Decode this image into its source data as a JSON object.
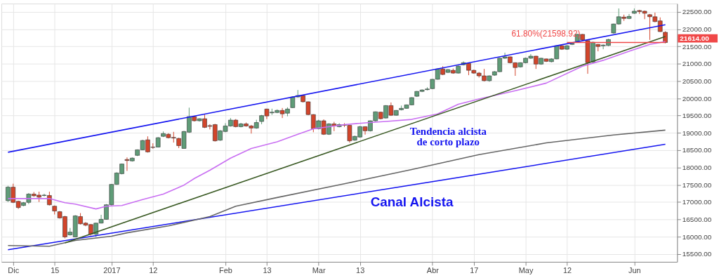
{
  "chart_data": {
    "type": "candlestick",
    "categories": [
      null,
      "Dic",
      null,
      null,
      null,
      null,
      null,
      null,
      null,
      "15",
      null,
      null,
      null,
      null,
      null,
      null,
      null,
      null,
      null,
      null,
      "2017",
      null,
      null,
      null,
      null,
      null,
      null,
      null,
      "12",
      null,
      null,
      null,
      null,
      null,
      null,
      null,
      null,
      null,
      null,
      null,
      null,
      null,
      "Feb",
      null,
      null,
      null,
      null,
      null,
      null,
      null,
      "13",
      null,
      null,
      null,
      null,
      null,
      null,
      null,
      null,
      null,
      "Mar",
      null,
      null,
      null,
      null,
      null,
      null,
      null,
      "13",
      null,
      null,
      null,
      null,
      null,
      null,
      null,
      null,
      null,
      null,
      null,
      null,
      null,
      "Abr",
      null,
      null,
      null,
      null,
      null,
      null,
      null,
      "17",
      null,
      null,
      null,
      null,
      null,
      null,
      null,
      null,
      null,
      "May",
      null,
      null,
      null,
      null,
      null,
      null,
      null,
      "12",
      null,
      null,
      null,
      null,
      null,
      null,
      null,
      null,
      null,
      null,
      null,
      null,
      "Jun",
      null,
      null,
      null,
      null,
      null,
      null
    ],
    "ohlc": [
      [
        17040,
        17470,
        17000,
        17430
      ],
      [
        17430,
        17530,
        16970,
        16990
      ],
      [
        17020,
        17040,
        16800,
        16840
      ],
      [
        16900,
        17000,
        16880,
        16980
      ],
      [
        16990,
        17260,
        16940,
        17230
      ],
      [
        17230,
        17290,
        17150,
        17180
      ],
      [
        17200,
        17300,
        17000,
        17140
      ],
      [
        17190,
        17240,
        17160,
        17200
      ],
      [
        17190,
        17300,
        16900,
        16920
      ],
      [
        16880,
        16900,
        16640,
        16740
      ],
      [
        16720,
        16740,
        16520,
        16540
      ],
      [
        16580,
        16600,
        15950,
        15990
      ],
      [
        16050,
        16250,
        16030,
        16130
      ],
      [
        15990,
        16620,
        15990,
        16600
      ],
      [
        16580,
        16680,
        16350,
        16370
      ],
      [
        16390,
        16420,
        16300,
        16330
      ],
      [
        16350,
        16360,
        16030,
        16070
      ],
      [
        16070,
        16400,
        15990,
        16390
      ],
      [
        16390,
        16630,
        16380,
        16500
      ],
      [
        16500,
        16940,
        16490,
        16920
      ],
      [
        16920,
        17520,
        16900,
        17510
      ],
      [
        17510,
        17860,
        17500,
        17840
      ],
      [
        17820,
        18110,
        17800,
        18100
      ],
      [
        18230,
        18290,
        17900,
        18200
      ],
      [
        18190,
        18290,
        18170,
        18270
      ],
      [
        18350,
        18520,
        18330,
        18510
      ],
      [
        18510,
        18800,
        18500,
        18780
      ],
      [
        18800,
        18900,
        18430,
        18450
      ],
      [
        18590,
        18700,
        18540,
        18580
      ],
      [
        18590,
        18880,
        18580,
        18860
      ],
      [
        18900,
        19040,
        18880,
        18980
      ],
      [
        18960,
        18990,
        18840,
        18860
      ],
      [
        18870,
        19030,
        18720,
        18850
      ],
      [
        18840,
        18860,
        18560,
        18630
      ],
      [
        18550,
        19060,
        18540,
        19040
      ],
      [
        19020,
        19730,
        19000,
        19470
      ],
      [
        19470,
        19490,
        19330,
        19350
      ],
      [
        19350,
        19420,
        19330,
        19410
      ],
      [
        19410,
        19530,
        19140,
        19160
      ],
      [
        19210,
        19250,
        19100,
        19190
      ],
      [
        19240,
        19260,
        18750,
        18770
      ],
      [
        18790,
        19080,
        18770,
        19060
      ],
      [
        19040,
        19280,
        19020,
        19200
      ],
      [
        19200,
        19430,
        19180,
        19370
      ],
      [
        19370,
        19400,
        19160,
        19180
      ],
      [
        19180,
        19290,
        19160,
        19260
      ],
      [
        19260,
        19300,
        19180,
        19200
      ],
      [
        19200,
        19230,
        18980,
        19140
      ],
      [
        19140,
        19380,
        19120,
        19300
      ],
      [
        19330,
        19520,
        19250,
        19500
      ],
      [
        19690,
        19700,
        19400,
        19490
      ],
      [
        19580,
        19700,
        19520,
        19600
      ],
      [
        19590,
        19680,
        19570,
        19650
      ],
      [
        19650,
        19720,
        19430,
        19550
      ],
      [
        19570,
        19740,
        19480,
        19690
      ],
      [
        19730,
        20060,
        19720,
        20040
      ],
      [
        20040,
        20240,
        20020,
        20080
      ],
      [
        20080,
        20090,
        19880,
        19900
      ],
      [
        19900,
        19910,
        19510,
        19530
      ],
      [
        19530,
        19540,
        19020,
        19120
      ],
      [
        19120,
        19380,
        19100,
        19350
      ],
      [
        19350,
        19390,
        18940,
        18960
      ],
      [
        18960,
        19280,
        18940,
        19260
      ],
      [
        19260,
        19320,
        19050,
        19200
      ],
      [
        19180,
        19280,
        19160,
        19240
      ],
      [
        19240,
        19280,
        19170,
        19220
      ],
      [
        19220,
        19230,
        18720,
        18770
      ],
      [
        18790,
        18920,
        18770,
        18900
      ],
      [
        18880,
        19200,
        18860,
        19180
      ],
      [
        19180,
        19190,
        18950,
        19060
      ],
      [
        19060,
        19360,
        19040,
        19350
      ],
      [
        19350,
        19620,
        19330,
        19610
      ],
      [
        19600,
        19610,
        19390,
        19410
      ],
      [
        19430,
        19800,
        19420,
        19790
      ],
      [
        19790,
        19880,
        19490,
        19510
      ],
      [
        19510,
        19660,
        19500,
        19650
      ],
      [
        19670,
        19790,
        19650,
        19710
      ],
      [
        19710,
        19820,
        19700,
        19810
      ],
      [
        19810,
        20030,
        19800,
        20020
      ],
      [
        20060,
        20210,
        20040,
        20200
      ],
      [
        20200,
        20260,
        20180,
        20240
      ],
      [
        20250,
        20320,
        20230,
        20270
      ],
      [
        20280,
        20560,
        20270,
        20550
      ],
      [
        20550,
        20860,
        20540,
        20850
      ],
      [
        20850,
        20930,
        20670,
        20690
      ],
      [
        20750,
        20850,
        20730,
        20830
      ],
      [
        20810,
        20860,
        20710,
        20730
      ],
      [
        20730,
        20950,
        20720,
        20930
      ],
      [
        20970,
        21070,
        20950,
        21030
      ],
      [
        21010,
        21020,
        20670,
        20810
      ],
      [
        20810,
        20830,
        20710,
        20730
      ],
      [
        20730,
        20760,
        20600,
        20650
      ],
      [
        20650,
        20850,
        20490,
        20510
      ],
      [
        20510,
        20660,
        20480,
        20650
      ],
      [
        20670,
        20790,
        20650,
        20770
      ],
      [
        20770,
        21170,
        20760,
        21160
      ],
      [
        21160,
        21320,
        21140,
        21200
      ],
      [
        21200,
        21210,
        21010,
        21030
      ],
      [
        21030,
        21040,
        20650,
        20890
      ],
      [
        20910,
        21040,
        20890,
        21030
      ],
      [
        21030,
        21180,
        21010,
        21160
      ],
      [
        21160,
        21280,
        21140,
        21220
      ],
      [
        21220,
        21230,
        20850,
        20990
      ],
      [
        20990,
        21170,
        20970,
        21160
      ],
      [
        21140,
        21150,
        21050,
        21070
      ],
      [
        21060,
        21160,
        21040,
        21140
      ],
      [
        21140,
        21530,
        21130,
        21520
      ],
      [
        21520,
        21540,
        21400,
        21420
      ],
      [
        21420,
        21540,
        21400,
        21520
      ],
      [
        21560,
        21610,
        21540,
        21590
      ],
      [
        21650,
        21860,
        21640,
        21850
      ],
      [
        21850,
        21860,
        21670,
        21690
      ],
      [
        21670,
        21680,
        20710,
        21030
      ],
      [
        21050,
        21640,
        21030,
        21620
      ],
      [
        21560,
        21570,
        21360,
        21500
      ],
      [
        21520,
        21560,
        21420,
        21540
      ],
      [
        21530,
        21720,
        21510,
        21700
      ],
      [
        21890,
        22160,
        21870,
        22150
      ],
      [
        22150,
        22600,
        22130,
        22360
      ],
      [
        22350,
        22420,
        22240,
        22310
      ],
      [
        22310,
        22440,
        22290,
        22370
      ],
      [
        22460,
        22600,
        22440,
        22520
      ],
      [
        22540,
        22560,
        22440,
        22510
      ],
      [
        22520,
        22540,
        22290,
        22460
      ],
      [
        22420,
        22440,
        21690,
        22360
      ],
      [
        22360,
        22480,
        22200,
        22220
      ],
      [
        22240,
        22340,
        21920,
        21930
      ],
      [
        21910,
        21940,
        21590,
        21614
      ]
    ],
    "series": [
      {
        "type": "line",
        "color": "#1414f0",
        "values": [
          18440,
          null,
          null,
          null,
          null,
          null,
          null,
          null,
          null,
          null,
          null,
          null,
          null,
          null,
          null,
          null,
          null,
          null,
          null,
          null,
          null,
          null,
          null,
          null,
          null,
          null,
          null,
          null,
          null,
          null,
          null,
          null,
          null,
          null,
          null,
          null,
          null,
          null,
          null,
          null,
          null,
          null,
          null,
          null,
          null,
          null,
          null,
          null,
          null,
          null,
          null,
          null,
          null,
          null,
          null,
          null,
          null,
          null,
          null,
          null,
          null,
          null,
          null,
          null,
          null,
          null,
          null,
          null,
          null,
          null,
          null,
          null,
          null,
          null,
          null,
          null,
          null,
          null,
          null,
          null,
          null,
          null,
          null,
          null,
          null,
          null,
          null,
          null,
          null,
          null,
          null,
          null,
          null,
          null,
          null,
          null,
          null,
          null,
          null,
          null,
          null,
          null,
          null,
          null,
          null,
          null,
          null,
          null,
          null,
          null,
          null,
          null,
          null,
          null,
          null,
          null,
          null,
          null,
          null,
          null,
          null,
          null,
          null,
          null,
          null,
          null,
          null,
          22130
        ]
      },
      {
        "type": "line",
        "color": "#1414f0",
        "values": [
          15620,
          null,
          null,
          null,
          null,
          null,
          null,
          null,
          null,
          null,
          null,
          null,
          null,
          null,
          null,
          null,
          null,
          null,
          null,
          null,
          null,
          null,
          null,
          null,
          null,
          null,
          null,
          null,
          null,
          null,
          null,
          null,
          null,
          null,
          null,
          null,
          null,
          null,
          null,
          null,
          null,
          null,
          null,
          null,
          null,
          null,
          null,
          null,
          null,
          null,
          null,
          null,
          null,
          null,
          null,
          null,
          null,
          null,
          null,
          null,
          null,
          null,
          null,
          null,
          null,
          null,
          null,
          null,
          null,
          null,
          null,
          null,
          null,
          null,
          null,
          null,
          null,
          null,
          null,
          null,
          null,
          null,
          null,
          null,
          null,
          null,
          null,
          null,
          null,
          null,
          null,
          null,
          null,
          null,
          null,
          null,
          null,
          null,
          null,
          null,
          null,
          null,
          null,
          null,
          null,
          null,
          null,
          null,
          null,
          null,
          null,
          null,
          null,
          null,
          null,
          null,
          null,
          null,
          null,
          null,
          null,
          null,
          null,
          null,
          null,
          null,
          null,
          18670
        ]
      },
      {
        "type": "line",
        "color": "#666666",
        "values": [
          15740,
          null,
          null,
          null,
          null,
          null,
          null,
          null,
          15720,
          null,
          null,
          null,
          null,
          15890,
          null,
          null,
          null,
          null,
          null,
          null,
          16010,
          null,
          null,
          16110,
          null,
          null,
          null,
          null,
          null,
          null,
          null,
          16310,
          null,
          null,
          null,
          null,
          null,
          null,
          null,
          16580,
          null,
          null,
          null,
          null,
          16880,
          null,
          null,
          null,
          null,
          null,
          null,
          null,
          17130,
          null,
          null,
          null,
          null,
          null,
          null,
          null,
          null,
          null,
          null,
          null,
          null,
          17530,
          null,
          null,
          null,
          null,
          null,
          null,
          null,
          null,
          null,
          null,
          null,
          null,
          17940,
          null,
          null,
          null,
          null,
          null,
          null,
          null,
          null,
          null,
          null,
          null,
          null,
          18370,
          null,
          null,
          null,
          null,
          null,
          null,
          null,
          null,
          null,
          null,
          null,
          null,
          18710,
          null,
          null,
          null,
          null,
          null,
          null,
          null,
          null,
          null,
          null,
          null,
          null,
          18940,
          null,
          null,
          null,
          null,
          null,
          null,
          null,
          null,
          null,
          19080
        ]
      },
      {
        "type": "line",
        "color": "#c96ff2",
        "values": [
          17100,
          null,
          null,
          null,
          null,
          null,
          null,
          null,
          17100,
          null,
          null,
          16980,
          null,
          16940,
          null,
          null,
          null,
          16800,
          null,
          16880,
          null,
          null,
          16900,
          null,
          null,
          null,
          17070,
          null,
          null,
          null,
          17230,
          null,
          null,
          null,
          17490,
          null,
          17680,
          null,
          null,
          17920,
          null,
          null,
          null,
          18270,
          null,
          null,
          null,
          18550,
          null,
          null,
          null,
          null,
          18740,
          null,
          null,
          null,
          18960,
          null,
          null,
          19120,
          null,
          19160,
          null,
          null,
          null,
          19240,
          null,
          null,
          null,
          null,
          19300,
          null,
          null,
          19330,
          null,
          null,
          null,
          null,
          19390,
          null,
          null,
          null,
          null,
          19550,
          null,
          null,
          null,
          19830,
          null,
          null,
          null,
          19980,
          null,
          null,
          null,
          null,
          null,
          null,
          20220,
          null,
          null,
          null,
          null,
          null,
          20440,
          null,
          null,
          null,
          null,
          null,
          null,
          20930,
          null,
          null,
          null,
          21100,
          null,
          null,
          null,
          null,
          21360,
          null,
          null,
          null,
          21560,
          null,
          null,
          21640
        ]
      },
      {
        "type": "line",
        "color": "#3a5a24",
        "values": [
          null,
          null,
          null,
          null,
          null,
          null,
          null,
          null,
          null,
          null,
          null,
          15820,
          null,
          null,
          null,
          null,
          null,
          null,
          null,
          null,
          null,
          null,
          null,
          null,
          null,
          null,
          null,
          null,
          null,
          null,
          null,
          null,
          null,
          null,
          null,
          null,
          null,
          null,
          null,
          null,
          null,
          null,
          null,
          null,
          null,
          null,
          null,
          null,
          null,
          null,
          null,
          null,
          null,
          null,
          null,
          null,
          null,
          null,
          null,
          null,
          null,
          null,
          null,
          null,
          null,
          null,
          null,
          null,
          null,
          null,
          null,
          null,
          null,
          null,
          null,
          null,
          null,
          null,
          null,
          null,
          null,
          null,
          null,
          null,
          null,
          null,
          null,
          null,
          null,
          null,
          null,
          null,
          null,
          null,
          null,
          null,
          null,
          null,
          null,
          null,
          null,
          null,
          null,
          null,
          null,
          null,
          null,
          null,
          null,
          null,
          null,
          null,
          null,
          null,
          null,
          null,
          null,
          null,
          null,
          null,
          null,
          null,
          null,
          null,
          null,
          null,
          null,
          21790
        ]
      },
      {
        "type": "line",
        "color": "#f04848",
        "values": [
          null,
          null,
          null,
          null,
          null,
          null,
          null,
          null,
          null,
          null,
          null,
          null,
          null,
          null,
          null,
          null,
          null,
          null,
          null,
          null,
          null,
          null,
          null,
          null,
          null,
          null,
          null,
          null,
          null,
          null,
          null,
          null,
          null,
          null,
          null,
          null,
          null,
          null,
          null,
          null,
          null,
          null,
          null,
          null,
          null,
          null,
          null,
          null,
          null,
          null,
          null,
          null,
          null,
          null,
          null,
          null,
          null,
          null,
          null,
          null,
          null,
          null,
          null,
          null,
          null,
          null,
          null,
          null,
          null,
          null,
          null,
          null,
          null,
          null,
          null,
          null,
          null,
          null,
          null,
          null,
          null,
          null,
          null,
          null,
          null,
          null,
          null,
          null,
          null,
          null,
          null,
          null,
          null,
          null,
          null,
          null,
          null,
          null,
          null,
          null,
          null,
          null,
          null,
          null,
          null,
          null,
          null,
          null,
          21614,
          null,
          null,
          null,
          null,
          null,
          null,
          null,
          null,
          null,
          null,
          null,
          null,
          null,
          null,
          null,
          null,
          null,
          null,
          21614
        ]
      }
    ],
    "ylim": [
      15270,
      22740
    ],
    "yticks": [
      {
        "value": 15500,
        "label": "15500.00"
      },
      {
        "value": 16000,
        "label": "16000.00"
      },
      {
        "value": 16500,
        "label": "16500.00"
      },
      {
        "value": 17000,
        "label": "17000.00"
      },
      {
        "value": 17500,
        "label": "17500.00"
      },
      {
        "value": 18000,
        "label": "18000.00"
      },
      {
        "value": 18500,
        "label": "18500.00"
      },
      {
        "value": 19000,
        "label": "19000.00"
      },
      {
        "value": 19500,
        "label": "19500.00"
      },
      {
        "value": 20000,
        "label": "20000.00"
      },
      {
        "value": 20500,
        "label": "20500.00"
      },
      {
        "value": 21000,
        "label": "21000.00"
      },
      {
        "value": 21500,
        "label": "21500.00"
      },
      {
        "value": 22000,
        "label": "22000.00"
      },
      {
        "value": 22500,
        "label": "22500.00"
      }
    ],
    "grid": true,
    "annotations": [
      "Tendencia alcista\nde corto plazo",
      "Canal Alcista",
      "61.80%(21598.92)",
      "21614.00"
    ]
  }
}
